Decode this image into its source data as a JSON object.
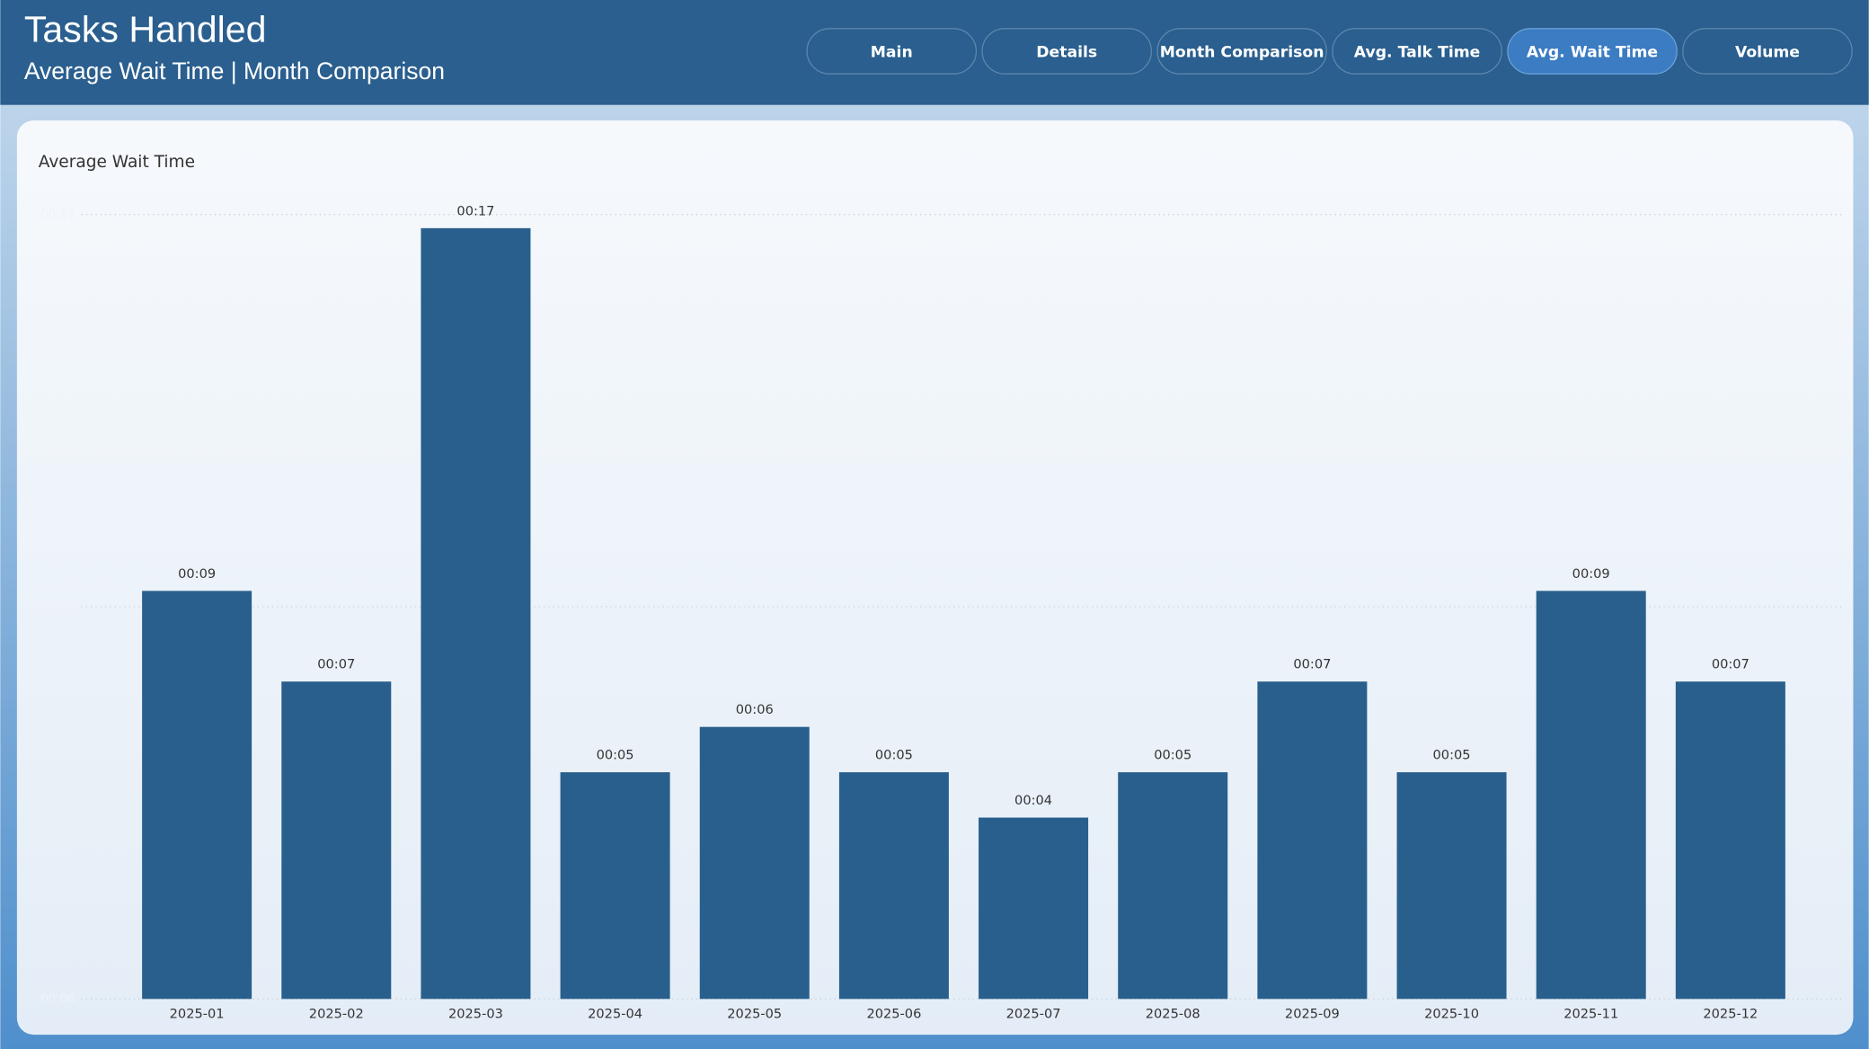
{
  "header": {
    "title": "Tasks Handled",
    "subtitle": "Average Wait Time | Month Comparison"
  },
  "nav": [
    "Main",
    "Details",
    "Month Comparison",
    "Avg. Talk Time",
    "Avg. Wait Time",
    "Volume"
  ],
  "active_nav": 4,
  "chart_data": {
    "type": "bar",
    "title": "Average Wait Time",
    "categories": [
      "2025-01",
      "2025-02",
      "2025-03",
      "2025-04",
      "2025-05",
      "2025-06",
      "2025-07",
      "2025-08",
      "2025-09",
      "2025-10",
      "2025-11",
      "2025-12"
    ],
    "values": [
      9,
      7,
      17,
      5,
      6,
      5,
      4,
      5,
      7,
      5,
      9,
      7
    ],
    "value_labels": [
      "00:09",
      "00:07",
      "00:17",
      "00:05",
      "00:06",
      "00:05",
      "00:04",
      "00:05",
      "00:07",
      "00:05",
      "00:09",
      "00:07"
    ],
    "color": "#295f8c",
    "ylim": [
      0,
      17.3
    ],
    "yticks": [
      {
        "value": 0,
        "label": "00:00"
      },
      {
        "value": 8.65,
        "label": "00:09"
      },
      {
        "value": 17.3,
        "label": "00:17"
      }
    ],
    "grid": true
  }
}
